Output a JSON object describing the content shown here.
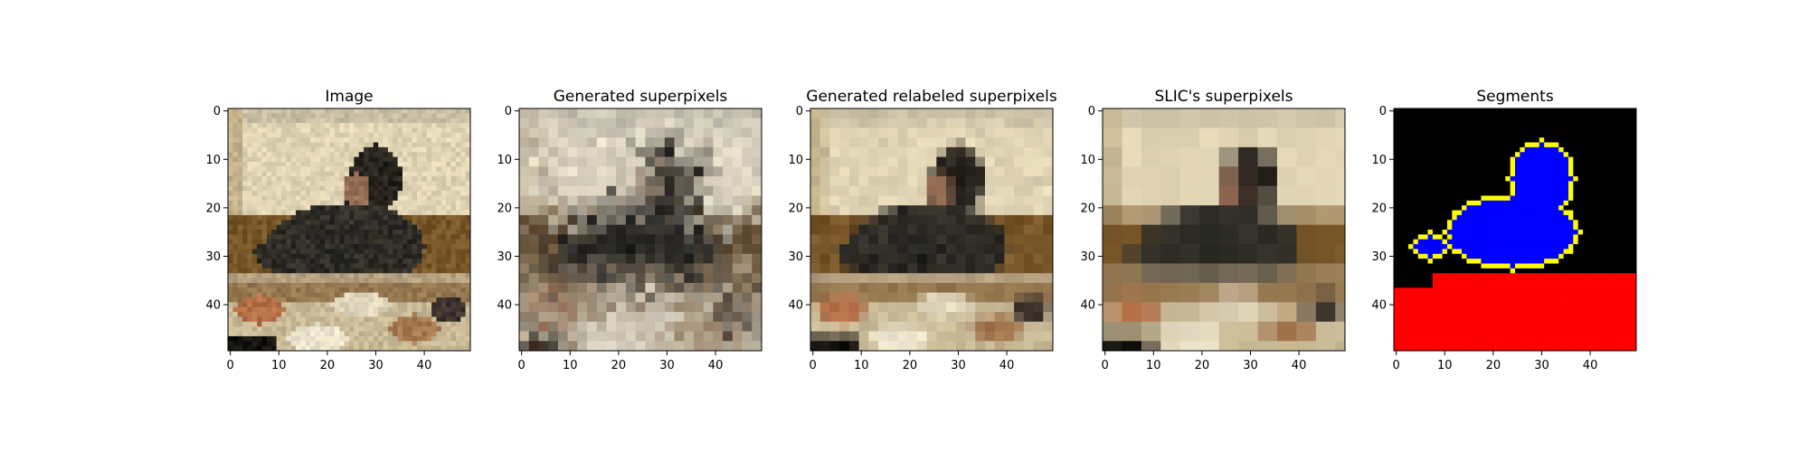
{
  "chart_data": [
    {
      "type": "heatmap",
      "title": "Image",
      "xticks": [
        "0",
        "10",
        "20",
        "30",
        "40"
      ],
      "yticks": [
        "0",
        "10",
        "20",
        "30",
        "40"
      ],
      "xlim": [
        0,
        50
      ],
      "ylim": [
        50,
        0
      ],
      "content": "photo of a person eating; table with plates of food in the foreground"
    },
    {
      "type": "heatmap",
      "title": "Generated superpixels",
      "xticks": [
        "0",
        "10",
        "20",
        "30",
        "40"
      ],
      "yticks": [
        "0",
        "10",
        "20",
        "30",
        "40"
      ],
      "xlim": [
        0,
        50
      ],
      "ylim": [
        50,
        0
      ]
    },
    {
      "type": "heatmap",
      "title": "Generated relabeled superpixels",
      "xticks": [
        "0",
        "10",
        "20",
        "30",
        "40"
      ],
      "yticks": [
        "0",
        "10",
        "20",
        "30",
        "40"
      ],
      "xlim": [
        0,
        50
      ],
      "ylim": [
        50,
        0
      ]
    },
    {
      "type": "heatmap",
      "title": "SLIC's superpixels",
      "xticks": [
        "0",
        "10",
        "20",
        "30",
        "40"
      ],
      "yticks": [
        "0",
        "10",
        "20",
        "30",
        "40"
      ],
      "xlim": [
        0,
        50
      ],
      "ylim": [
        50,
        0
      ]
    },
    {
      "type": "heatmap",
      "title": "Segments",
      "xticks": [
        "0",
        "10",
        "20",
        "30",
        "40"
      ],
      "yticks": [
        "0",
        "10",
        "20",
        "30",
        "40"
      ],
      "xlim": [
        0,
        50
      ],
      "ylim": [
        50,
        0
      ],
      "colors": {
        "background": "#000000",
        "person": "#0000ff",
        "table": "#ff0000",
        "boundary": "#ffff00"
      },
      "table_top_row": 34
    }
  ]
}
